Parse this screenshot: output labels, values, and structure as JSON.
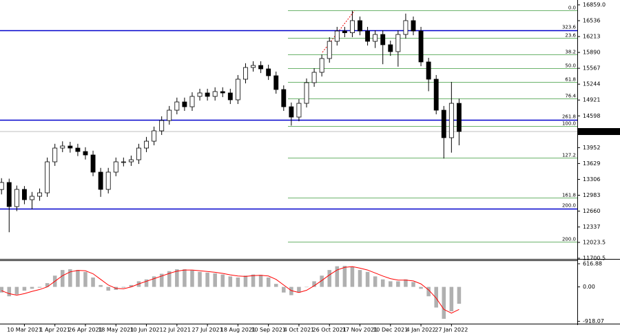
{
  "chart_data": [
    {
      "type": "candlestick",
      "xlim": [
        -0.2,
        75.5
      ],
      "ylim": [
        11700.5,
        16957
      ],
      "yticks": [
        {
          "value": 16859,
          "label": "16859.0"
        },
        16536,
        16213,
        15890,
        15567,
        15244,
        14921,
        14598,
        13952,
        13629,
        13306,
        12983,
        12660,
        12337,
        12023.5,
        11700.5
      ],
      "open": [
        13100,
        13243,
        12752,
        13102,
        12892,
        12962,
        13032,
        13663,
        13943,
        13985,
        13943,
        13873,
        13803,
        13453,
        13102,
        13453,
        13663,
        13663,
        13705,
        13943,
        14083,
        14294,
        14504,
        14714,
        14882,
        14784,
        14995,
        15065,
        14995,
        15093,
        15065,
        14925,
        15345,
        15583,
        15625,
        15555,
        15415,
        15135,
        14784,
        14574,
        14854,
        15275,
        15485,
        15766,
        16116,
        16326,
        16290,
        16537,
        16326,
        16116,
        16256,
        16046,
        15906,
        16256,
        16537,
        16326,
        15696,
        15345,
        14714,
        14154,
        14854
      ],
      "high": [
        13330,
        13320,
        13180,
        13170,
        13050,
        13120,
        13750,
        14030,
        14080,
        14070,
        14030,
        13960,
        13890,
        13540,
        13540,
        13750,
        13750,
        13790,
        14030,
        14170,
        14380,
        14590,
        14800,
        14970,
        14970,
        15080,
        15150,
        15150,
        15180,
        15180,
        15150,
        15430,
        15670,
        15710,
        15710,
        15640,
        15500,
        15220,
        14870,
        14940,
        15360,
        15570,
        15850,
        16200,
        16410,
        16410,
        16740,
        16620,
        16410,
        16340,
        16340,
        16130,
        16340,
        16680,
        16620,
        16410,
        15780,
        15430,
        14800,
        15290,
        14950
      ],
      "low": [
        13000,
        12230,
        12660,
        12800,
        12700,
        12870,
        12950,
        13580,
        13860,
        13850,
        13780,
        13710,
        13370,
        12950,
        13020,
        13370,
        13570,
        13580,
        13620,
        13860,
        14000,
        14210,
        14420,
        14630,
        14700,
        14700,
        14910,
        14910,
        14910,
        14980,
        14840,
        14840,
        15260,
        15500,
        15470,
        15330,
        15050,
        14700,
        14400,
        14490,
        14770,
        15190,
        15400,
        15680,
        16030,
        16200,
        16200,
        16240,
        16030,
        15980,
        15650,
        15820,
        15600,
        16170,
        16240,
        15610,
        15100,
        14630,
        13730,
        13850,
        14000
      ],
      "close": [
        13243,
        12752,
        13102,
        12892,
        12962,
        13032,
        13663,
        13943,
        13985,
        13943,
        13873,
        13803,
        13453,
        13102,
        13453,
        13663,
        13663,
        13705,
        13943,
        14083,
        14294,
        14504,
        14714,
        14882,
        14784,
        14995,
        15065,
        14995,
        15093,
        15065,
        14925,
        15345,
        15583,
        15625,
        15555,
        15415,
        15135,
        14784,
        14574,
        14854,
        15275,
        15485,
        15766,
        16116,
        16326,
        16290,
        16537,
        16326,
        16116,
        16256,
        16046,
        15906,
        16256,
        16537,
        16326,
        15696,
        15345,
        14714,
        14154,
        14854,
        14279.5
      ],
      "last_price": 14279.5,
      "up_color": "#ffffff",
      "down_color": "#000000",
      "horizontal_lines_color": "#0000cc",
      "horizontal_lines": [
        {
          "label": "323.6",
          "value": 16340
        },
        {
          "label": "261.8",
          "value": 14518
        },
        {
          "label": "200.0",
          "value": 12710
        }
      ],
      "fibonacci_color": "#3a9a3a",
      "fibonacci": [
        {
          "label": "0.0",
          "value": 16750
        },
        {
          "label": "23.6",
          "value": 16193
        },
        {
          "label": "38.2",
          "value": 15848
        },
        {
          "label": "50.0",
          "value": 15570
        },
        {
          "label": "61.8",
          "value": 15292
        },
        {
          "label": "76.4",
          "value": 14947
        },
        {
          "label": "100.0",
          "value": 14390
        },
        {
          "label": "127.2",
          "value": 13748
        },
        {
          "label": "161.8",
          "value": 12932
        },
        {
          "label": "200.0",
          "value": 12030
        }
      ]
    },
    {
      "type": "macd",
      "xlim": [
        -0.2,
        75.5
      ],
      "ylim": [
        -980,
        690
      ],
      "yticks": [
        616.88,
        {
          "value": 0,
          "label": "0.00"
        },
        -918.07
      ],
      "xticks": [
        {
          "value": 3,
          "label": "10 Mar 2021"
        },
        {
          "value": 7,
          "label": "1 Apr 2021"
        },
        {
          "value": 11,
          "label": "26 Apr 2021"
        },
        {
          "value": 15,
          "label": "18 May 2021"
        },
        {
          "value": 19,
          "label": "10 Jun 2021"
        },
        {
          "value": 23,
          "label": "2 Jul 2021"
        },
        {
          "value": 27,
          "label": "27 Jul 2021"
        },
        {
          "value": 31,
          "label": "18 Aug 2021"
        },
        {
          "value": 35,
          "label": "10 Sep 2021"
        },
        {
          "value": 39,
          "label": "4 Oct 2021"
        },
        {
          "value": 43,
          "label": "26 Oct 2021"
        },
        {
          "value": 47,
          "label": "17 Nov 2021"
        },
        {
          "value": 51,
          "label": "10 Dec 2021"
        },
        {
          "value": 55,
          "label": "4 Jan 2022"
        },
        {
          "value": 59,
          "label": "27 Jan 2022"
        }
      ],
      "histogram_color": "#b0b0b0",
      "signal_color": "#ff0000",
      "histogram": [
        -150,
        -250,
        -200,
        -100,
        -50,
        -20,
        100,
        300,
        450,
        470,
        450,
        400,
        250,
        50,
        -100,
        -80,
        -20,
        50,
        150,
        200,
        280,
        350,
        420,
        470,
        470,
        440,
        400,
        380,
        360,
        330,
        280,
        250,
        300,
        330,
        320,
        250,
        80,
        -150,
        -220,
        -150,
        0,
        150,
        300,
        450,
        550,
        560,
        540,
        450,
        400,
        280,
        200,
        150,
        150,
        200,
        130,
        -50,
        -250,
        -550,
        -850,
        -650,
        -450
      ],
      "signal": [
        -100,
        -180,
        -220,
        -180,
        -120,
        -70,
        0,
        150,
        300,
        400,
        440,
        430,
        350,
        200,
        50,
        -40,
        -50,
        0,
        80,
        150,
        220,
        290,
        360,
        420,
        450,
        450,
        430,
        410,
        390,
        360,
        320,
        290,
        280,
        300,
        310,
        290,
        200,
        50,
        -100,
        -150,
        -90,
        30,
        170,
        320,
        450,
        520,
        540,
        500,
        450,
        370,
        290,
        220,
        180,
        180,
        160,
        80,
        -80,
        -300,
        -600,
        -700,
        -600
      ]
    }
  ]
}
